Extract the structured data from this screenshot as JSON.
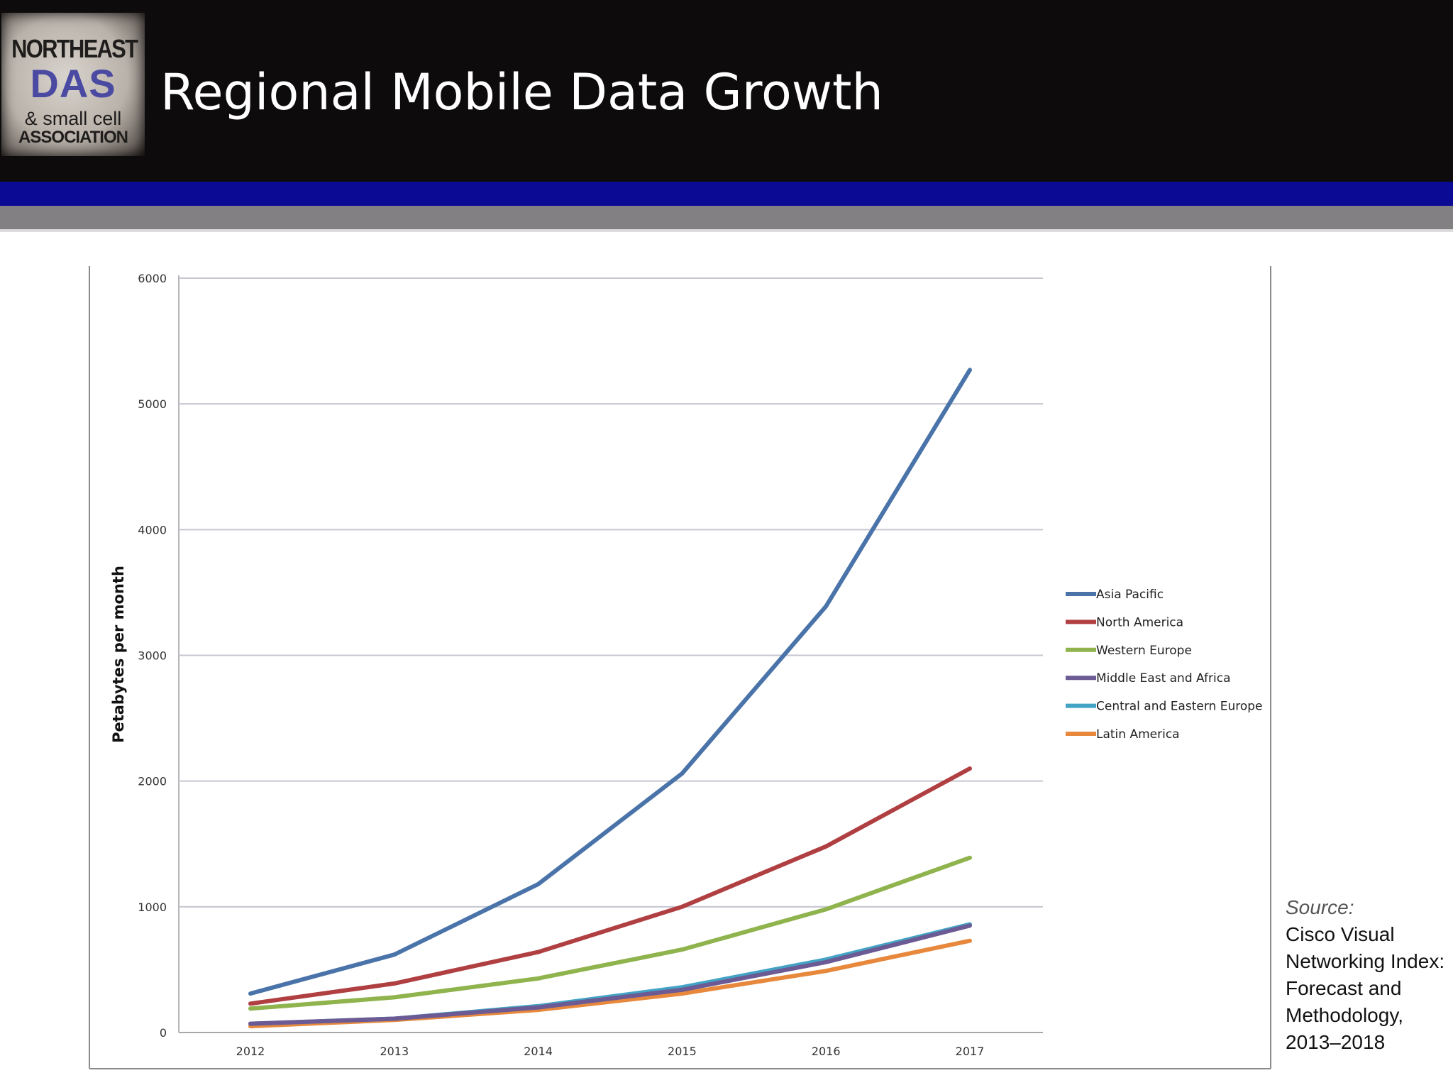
{
  "header": {
    "title": "Regional Mobile Data Growth",
    "logo": {
      "line1": "NORTHEAST",
      "line2": "DAS",
      "line3": "& small cell",
      "line4": "ASSOCIATION"
    }
  },
  "source": {
    "label": "Source:",
    "text": "Cisco Visual Networking Index: Forecast and Methodology, 2013–2018"
  },
  "chart_data": {
    "type": "line",
    "title": "",
    "xlabel": "",
    "ylabel": "Petabytes per month",
    "categories": [
      "2012",
      "2013",
      "2014",
      "2015",
      "2016",
      "2017"
    ],
    "ylim": [
      0,
      6000
    ],
    "yticks": [
      0,
      1000,
      2000,
      3000,
      4000,
      5000,
      6000
    ],
    "grid": true,
    "legend_position": "right",
    "series": [
      {
        "name": "Asia Pacific",
        "color": "#4a74a9",
        "values": [
          310,
          620,
          1180,
          2060,
          3390,
          5270
        ]
      },
      {
        "name": "North America",
        "color": "#b03f42",
        "values": [
          230,
          390,
          640,
          1000,
          1480,
          2100
        ]
      },
      {
        "name": "Western Europe",
        "color": "#8fb34d",
        "values": [
          190,
          280,
          430,
          660,
          980,
          1390
        ]
      },
      {
        "name": "Middle East and Africa",
        "color": "#6b5a93",
        "values": [
          70,
          110,
          200,
          340,
          560,
          850
        ]
      },
      {
        "name": "Central and Eastern Europe",
        "color": "#43a3c5",
        "values": [
          70,
          110,
          210,
          360,
          580,
          860
        ]
      },
      {
        "name": "Latin America",
        "color": "#e7883c",
        "values": [
          50,
          100,
          180,
          310,
          490,
          730
        ]
      }
    ]
  }
}
